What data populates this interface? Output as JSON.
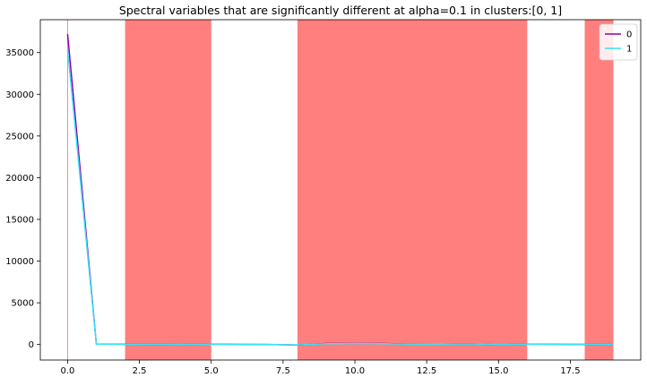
{
  "chart_data": {
    "type": "line",
    "title": "Spectral variables that are significantly different at alpha=0.1 in clusters:[0, 1]",
    "xlabel": "",
    "ylabel": "",
    "xlim": [
      -0.95,
      19.95
    ],
    "ylim": [
      -1860,
      38940
    ],
    "x_ticks": [
      0.0,
      2.5,
      5.0,
      7.5,
      10.0,
      12.5,
      15.0,
      17.5
    ],
    "x_tick_labels": [
      "0.0",
      "2.5",
      "5.0",
      "7.5",
      "10.0",
      "12.5",
      "15.0",
      "17.5"
    ],
    "y_ticks": [
      0,
      5000,
      10000,
      15000,
      20000,
      25000,
      30000,
      35000
    ],
    "y_tick_labels": [
      "0",
      "5000",
      "10000",
      "15000",
      "20000",
      "25000",
      "30000",
      "35000"
    ],
    "grid": false,
    "legend_position": "top-right",
    "x": [
      0,
      1,
      2,
      3,
      4,
      5,
      6,
      7,
      8,
      9,
      10,
      11,
      12,
      13,
      14,
      15,
      16,
      17,
      18,
      19
    ],
    "series": [
      {
        "name": "0",
        "color": "#8b00b0",
        "values": [
          37200,
          60,
          30,
          20,
          10,
          40,
          20,
          10,
          -60,
          120,
          130,
          120,
          40,
          50,
          90,
          -20,
          40,
          30,
          20,
          10
        ]
      },
      {
        "name": "1",
        "color": "#33e4f7",
        "values": [
          35300,
          50,
          25,
          15,
          5,
          35,
          15,
          5,
          -50,
          100,
          110,
          100,
          30,
          40,
          70,
          -10,
          30,
          25,
          15,
          5
        ]
      }
    ],
    "significant_regions": [
      {
        "x_start": 2,
        "x_end": 5
      },
      {
        "x_start": 8,
        "x_end": 16
      },
      {
        "x_start": 18,
        "x_end": 19
      }
    ],
    "highlight_color": "#ff7f7f",
    "marker_line": {
      "x": 0,
      "color": "#ff7fa8"
    }
  }
}
